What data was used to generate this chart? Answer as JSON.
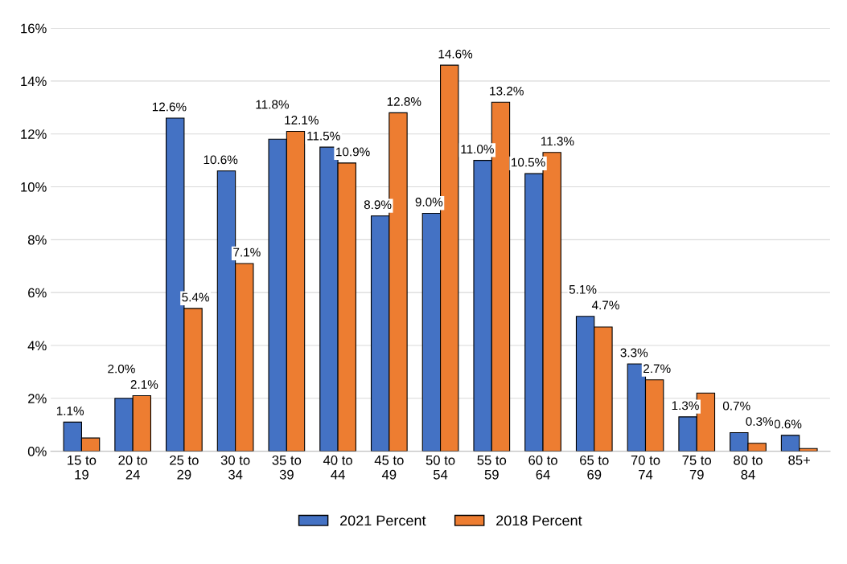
{
  "chart_data": {
    "type": "bar",
    "categories": [
      "15 to\n19",
      "20 to\n24",
      "25 to\n29",
      "30 to\n34",
      "35 to\n39",
      "40 to\n44",
      "45 to\n49",
      "50 to\n54",
      "55 to\n59",
      "60 to\n64",
      "65 to\n69",
      "70 to\n74",
      "75 to\n79",
      "80 to\n84",
      "85+"
    ],
    "series": [
      {
        "name": "2021 Percent",
        "color": "#4472c4",
        "values": [
          1.1,
          2.0,
          12.6,
          10.6,
          11.8,
          11.5,
          8.9,
          9.0,
          11.0,
          10.5,
          5.1,
          3.3,
          1.3,
          0.7,
          0.6
        ],
        "value_labels": [
          "1.1%",
          "2.0%",
          "12.6%",
          "10.6%",
          "11.8%",
          "11.5%",
          "8.9%",
          "9.0%",
          "11.0%",
          "10.5%",
          "5.1%",
          "3.3%",
          "1.3%",
          "0.7%",
          "0.6%"
        ]
      },
      {
        "name": "2018 Percent",
        "color": "#ed7d31",
        "values": [
          0.5,
          2.1,
          5.4,
          7.1,
          12.1,
          10.9,
          12.8,
          14.6,
          13.2,
          11.3,
          4.7,
          2.7,
          2.2,
          0.3,
          0.1
        ],
        "value_labels": [
          null,
          "2.1%",
          "5.4%",
          "7.1%",
          "12.1%",
          "10.9%",
          "12.8%",
          "14.6%",
          "13.2%",
          "11.3%",
          "4.7%",
          "2.7%",
          null,
          "0.3%",
          null
        ]
      }
    ],
    "ylim": [
      0,
      16
    ],
    "yticks": [
      {
        "value": 0,
        "label": "0%"
      },
      {
        "value": 2,
        "label": "2%"
      },
      {
        "value": 4,
        "label": "4%"
      },
      {
        "value": 6,
        "label": "6%"
      },
      {
        "value": 8,
        "label": "8%"
      },
      {
        "value": 10,
        "label": "10%"
      },
      {
        "value": 12,
        "label": "12%"
      },
      {
        "value": 14,
        "label": "14%"
      },
      {
        "value": 16,
        "label": "16%"
      }
    ],
    "grid": "y",
    "legend": "bottom"
  }
}
